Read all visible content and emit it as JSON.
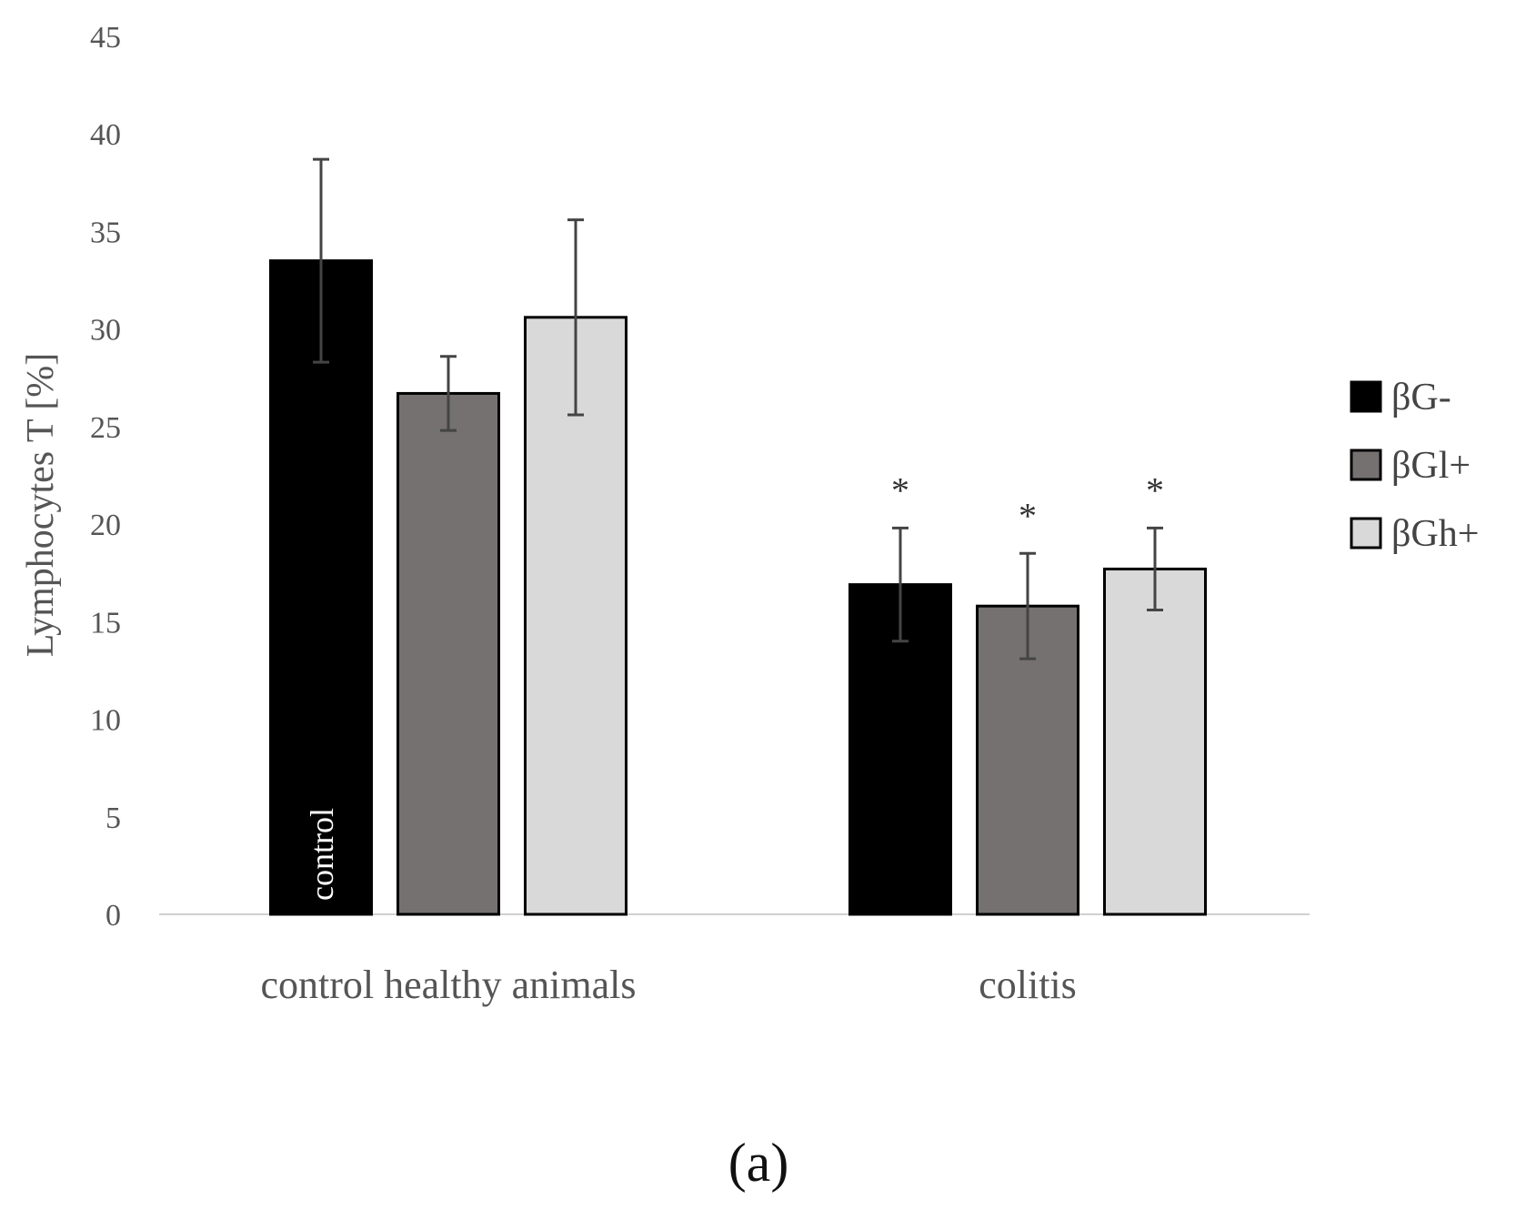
{
  "chart_data": {
    "type": "bar",
    "title": "",
    "xlabel": "",
    "ylabel": "Lymphocytes T [%]",
    "ylim": [
      0,
      45
    ],
    "yticks": [
      0,
      5,
      10,
      15,
      20,
      25,
      30,
      35,
      40,
      45
    ],
    "categories": [
      "control healthy animals",
      "colitis"
    ],
    "series": [
      {
        "name": "βG-",
        "color": "#000000",
        "values": [
          33.5,
          16.9
        ],
        "errors": [
          5.2,
          2.9
        ],
        "significance": [
          "",
          "*"
        ]
      },
      {
        "name": "βGl+",
        "color": "#767171",
        "values": [
          26.7,
          15.8
        ],
        "errors": [
          1.9,
          2.7
        ],
        "significance": [
          "",
          "*"
        ]
      },
      {
        "name": "βGh+",
        "color": "#d9d9d9",
        "values": [
          30.6,
          17.7
        ],
        "errors": [
          5.0,
          2.1
        ],
        "significance": [
          "",
          "*"
        ]
      }
    ],
    "bar_annotation": {
      "category": 0,
      "series": 0,
      "text": "control"
    },
    "legend_position": "right",
    "grid": false,
    "caption": "(a)"
  }
}
